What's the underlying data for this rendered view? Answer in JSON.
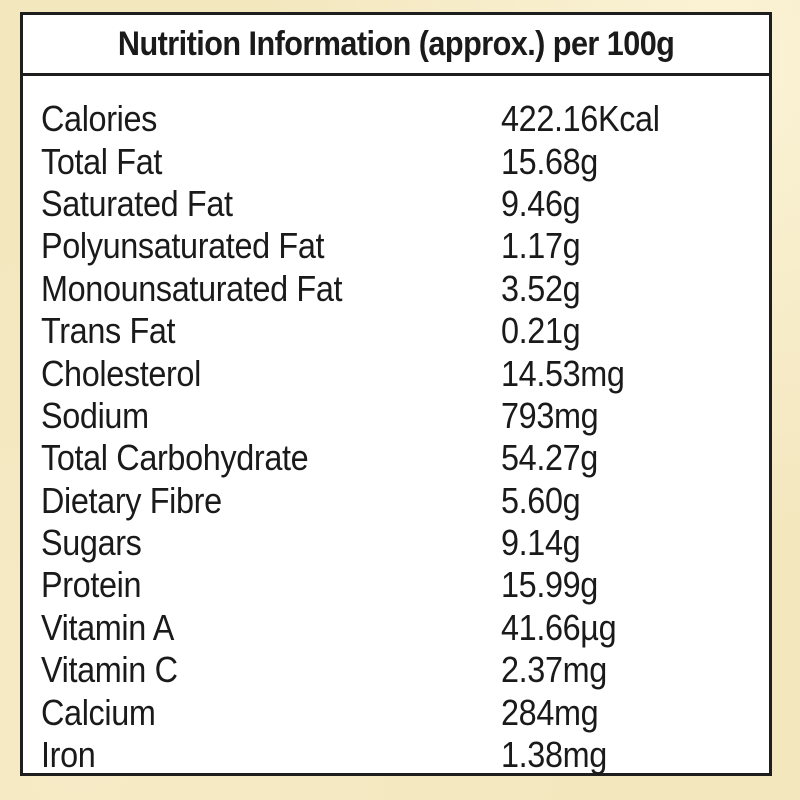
{
  "title": "Nutrition Information (approx.) per 100g",
  "rows": [
    {
      "label": "Calories",
      "value": "422.16Kcal"
    },
    {
      "label": "Total Fat",
      "value": "15.68g"
    },
    {
      "label": "Saturated Fat",
      "value": "9.46g"
    },
    {
      "label": "Polyunsaturated Fat",
      "value": "1.17g"
    },
    {
      "label": "Monounsaturated Fat",
      "value": "3.52g"
    },
    {
      "label": "Trans Fat",
      "value": "0.21g"
    },
    {
      "label": "Cholesterol",
      "value": "14.53mg"
    },
    {
      "label": "Sodium",
      "value": "793mg"
    },
    {
      "label": "Total Carbohydrate",
      "value": "54.27g"
    },
    {
      "label": "Dietary Fibre",
      "value": "5.60g"
    },
    {
      "label": "Sugars",
      "value": "9.14g"
    },
    {
      "label": "Protein",
      "value": "15.99g"
    },
    {
      "label": "Vitamin A",
      "value": "41.66µg"
    },
    {
      "label": "Vitamin C",
      "value": "2.37mg"
    },
    {
      "label": "Calcium",
      "value": "284mg"
    },
    {
      "label": "Iron",
      "value": "1.38mg"
    }
  ]
}
